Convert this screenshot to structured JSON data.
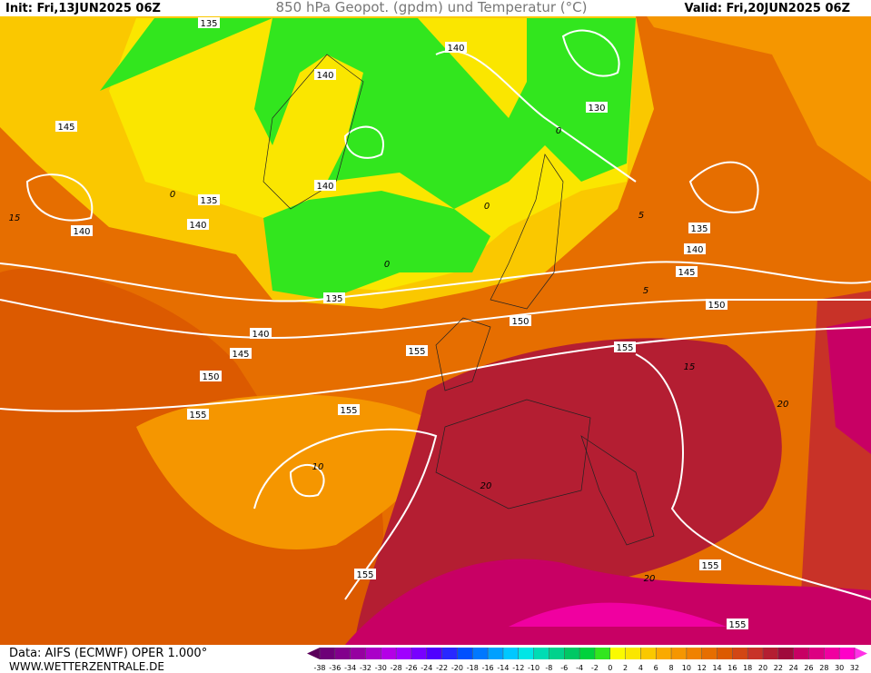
{
  "header": {
    "init": "Init: Fri,13JUN2025 06Z",
    "title": "850 hPa Geopot. (gpdm) und Temperatur (°C)",
    "valid": "Valid: Fri,20JUN2025 06Z"
  },
  "footer": {
    "source": "Data: AIFS (ECMWF) OPER 1.000°",
    "site": "WWW.WETTERZENTRALE.DE"
  },
  "geopotential_labels": [
    135,
    140,
    140,
    130,
    145,
    135,
    140,
    140,
    140,
    135,
    140,
    145,
    135,
    150,
    150,
    140,
    145,
    155,
    155,
    150,
    155,
    155,
    155,
    155,
    155
  ],
  "temperature_labels": [
    0,
    0,
    0,
    0,
    5,
    5,
    15,
    15,
    20,
    10,
    20,
    20
  ],
  "colorbar": {
    "ticks": [
      -38,
      -36,
      -34,
      -32,
      -30,
      -28,
      -26,
      -24,
      -22,
      -20,
      -18,
      -16,
      -14,
      -12,
      -10,
      -8,
      -6,
      -4,
      -2,
      0,
      2,
      4,
      6,
      8,
      10,
      12,
      14,
      16,
      18,
      20,
      22,
      24,
      26,
      28,
      30,
      32
    ],
    "colors": [
      "#5a005a",
      "#6e0078",
      "#82008c",
      "#9600a0",
      "#aa00c8",
      "#b400e6",
      "#a000ff",
      "#7800ff",
      "#5000ff",
      "#2828ff",
      "#0050ff",
      "#0078ff",
      "#00a0ff",
      "#00c8ff",
      "#00e6e6",
      "#00dcb4",
      "#00d28c",
      "#00c864",
      "#00d23c",
      "#32e61e",
      "#fafa00",
      "#fae600",
      "#fac800",
      "#faaa00",
      "#f59600",
      "#f08200",
      "#e66e00",
      "#dc5a00",
      "#d24614",
      "#c83228",
      "#b41e32",
      "#a00a3c",
      "#c80064",
      "#dc0082",
      "#f000a0",
      "#ff00c8",
      "#ff32e6"
    ]
  }
}
